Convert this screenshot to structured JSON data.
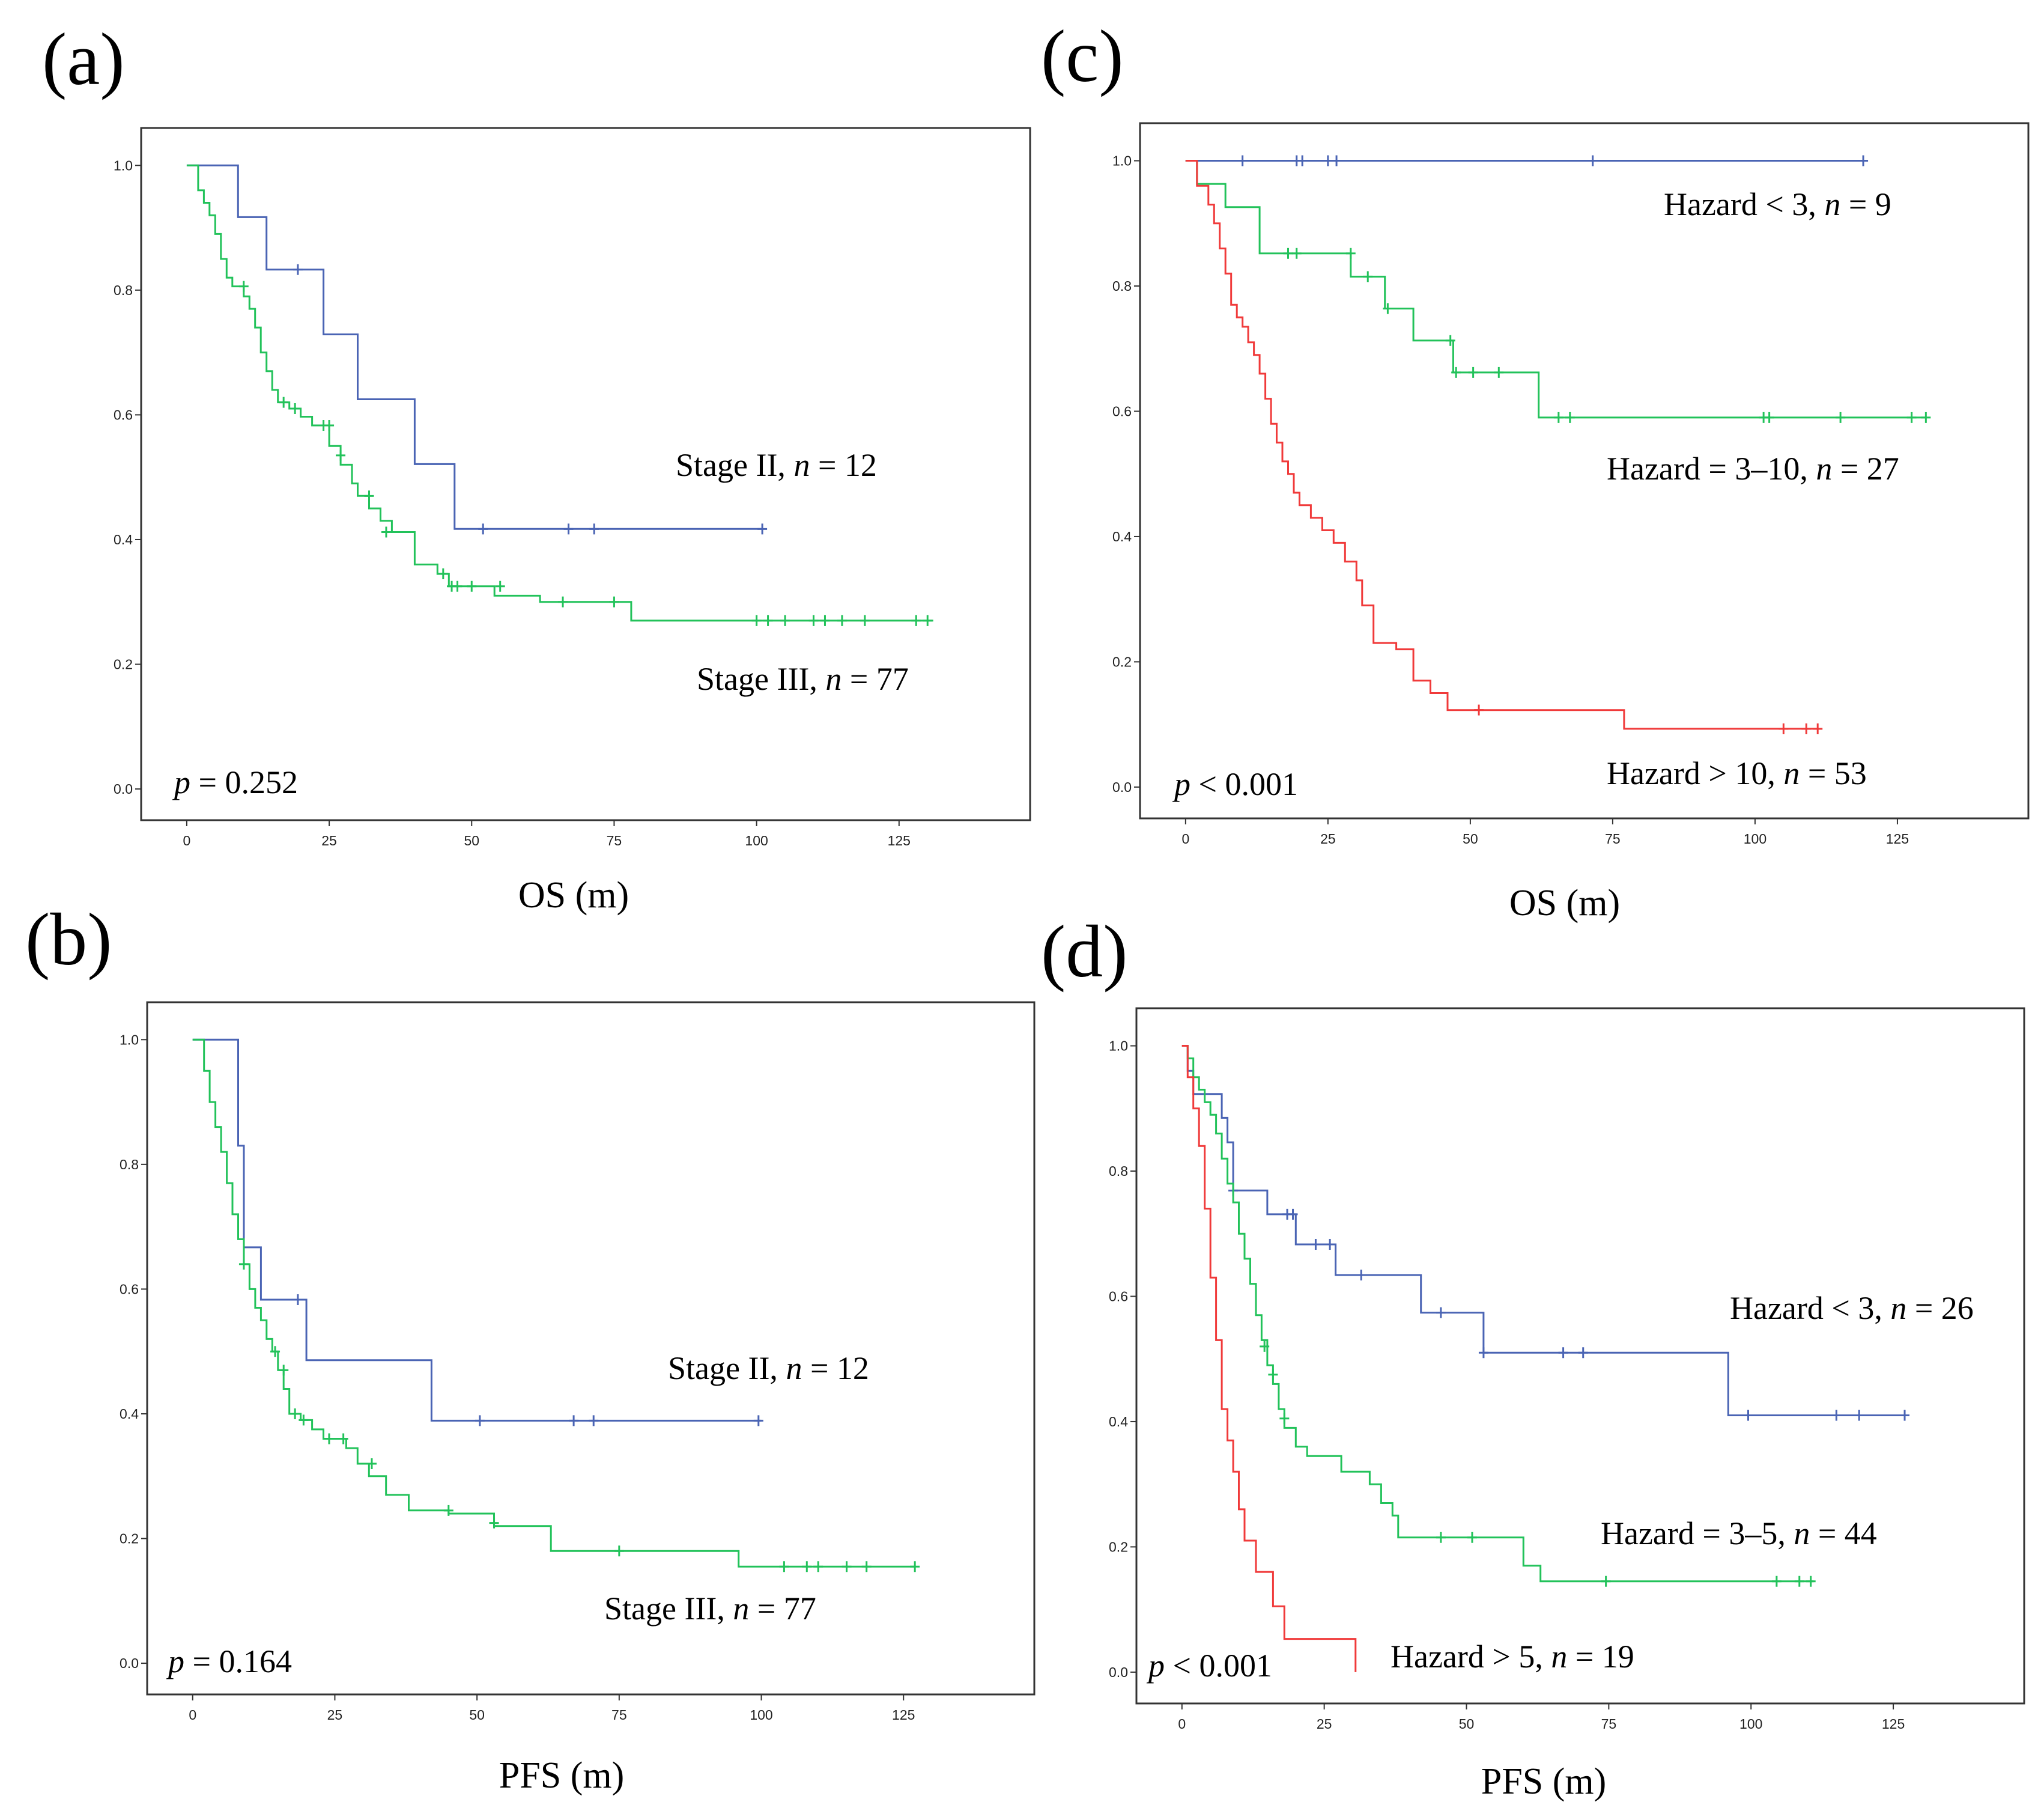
{
  "chart_data": [
    {
      "panel": "(a)",
      "type": "line",
      "subtype": "kaplan-meier",
      "xlabel": "OS (m)",
      "ylabel": "",
      "xlim": [
        -8,
        148
      ],
      "ylim": [
        -0.05,
        1.06
      ],
      "xticks": [
        0,
        25,
        50,
        75,
        100,
        125
      ],
      "yticks": [
        "0.0",
        "0.2",
        "0.4",
        "0.6",
        "0.8",
        "1.0"
      ],
      "p_value": {
        "prefix": "p",
        "text": " = 0.252"
      },
      "series": [
        {
          "name": "Stage II",
          "label_prefix": "Stage II, ",
          "label_n": "n",
          "label_suffix": " = 12",
          "color": "#4a64b4",
          "x": [
            0,
            9,
            14,
            24,
            30,
            40,
            47,
            101
          ],
          "y": [
            1.0,
            0.917,
            0.833,
            0.729,
            0.625,
            0.521,
            0.417,
            0.417
          ],
          "censors": [
            [
              19.5,
              0.833
            ],
            [
              52,
              0.417
            ],
            [
              67,
              0.417
            ],
            [
              71.5,
              0.417
            ],
            [
              101,
              0.417
            ]
          ]
        },
        {
          "name": "Stage III",
          "label_prefix": "Stage III, ",
          "label_n": "n",
          "label_suffix": " = 77",
          "color": "#22c25a",
          "x": [
            0,
            2,
            3,
            4,
            5,
            6,
            7,
            8,
            10,
            11,
            12,
            13,
            14,
            15,
            16,
            18,
            20,
            22,
            25,
            27,
            29,
            30,
            32,
            34,
            36,
            40,
            44,
            46,
            54,
            62,
            78,
            131
          ],
          "y": [
            1.0,
            0.96,
            0.94,
            0.92,
            0.89,
            0.85,
            0.82,
            0.806,
            0.79,
            0.77,
            0.74,
            0.7,
            0.67,
            0.64,
            0.62,
            0.61,
            0.597,
            0.583,
            0.55,
            0.52,
            0.49,
            0.47,
            0.45,
            0.43,
            0.412,
            0.36,
            0.345,
            0.325,
            0.31,
            0.3,
            0.27,
            0.27
          ],
          "censors": [
            [
              10,
              0.806
            ],
            [
              17,
              0.62
            ],
            [
              19,
              0.61
            ],
            [
              24,
              0.583
            ],
            [
              25,
              0.583
            ],
            [
              27,
              0.535
            ],
            [
              32,
              0.47
            ],
            [
              35,
              0.412
            ],
            [
              45,
              0.345
            ],
            [
              46.5,
              0.325
            ],
            [
              47.5,
              0.325
            ],
            [
              50,
              0.325
            ],
            [
              55,
              0.325
            ],
            [
              66,
              0.3
            ],
            [
              75,
              0.3
            ],
            [
              100,
              0.27
            ],
            [
              102,
              0.27
            ],
            [
              105,
              0.27
            ],
            [
              110,
              0.27
            ],
            [
              112,
              0.27
            ],
            [
              115,
              0.27
            ],
            [
              119,
              0.27
            ],
            [
              128,
              0.27
            ],
            [
              130,
              0.27
            ]
          ]
        }
      ]
    },
    {
      "panel": "(b)",
      "type": "line",
      "subtype": "kaplan-meier",
      "xlabel": "PFS (m)",
      "ylabel": "",
      "xlim": [
        -8,
        148
      ],
      "ylim": [
        -0.05,
        1.06
      ],
      "xticks": [
        0,
        25,
        50,
        75,
        100,
        125
      ],
      "yticks": [
        "0.0",
        "0.2",
        "0.4",
        "0.6",
        "0.8",
        "1.0"
      ],
      "p_value": {
        "prefix": "p",
        "text": " = 0.164"
      },
      "series": [
        {
          "name": "Stage II",
          "label_prefix": "Stage II, ",
          "label_n": "n",
          "label_suffix": " = 12",
          "color": "#4a64b4",
          "x": [
            0,
            8,
            9,
            12,
            20,
            42,
            100
          ],
          "y": [
            1.0,
            0.83,
            0.667,
            0.583,
            0.486,
            0.389,
            0.389
          ],
          "censors": [
            [
              18.5,
              0.583
            ],
            [
              50.5,
              0.389
            ],
            [
              67,
              0.389
            ],
            [
              70.5,
              0.389
            ],
            [
              99.5,
              0.389
            ]
          ]
        },
        {
          "name": "Stage III",
          "label_prefix": "Stage III, ",
          "label_n": "n",
          "label_suffix": " = 77",
          "color": "#22c25a",
          "x": [
            0,
            2,
            3,
            4,
            5,
            6,
            7,
            8,
            9,
            10,
            11,
            12,
            13,
            14,
            15,
            16,
            17,
            19,
            21,
            23,
            27,
            29,
            31,
            34,
            38,
            45,
            53,
            63,
            96,
            127
          ],
          "y": [
            1.0,
            0.95,
            0.9,
            0.86,
            0.82,
            0.77,
            0.72,
            0.68,
            0.64,
            0.6,
            0.57,
            0.55,
            0.52,
            0.5,
            0.47,
            0.44,
            0.4,
            0.39,
            0.375,
            0.36,
            0.345,
            0.32,
            0.3,
            0.27,
            0.245,
            0.24,
            0.22,
            0.18,
            0.155,
            0.155
          ],
          "censors": [
            [
              9,
              0.64
            ],
            [
              14.5,
              0.5
            ],
            [
              16,
              0.47
            ],
            [
              18,
              0.4
            ],
            [
              19.5,
              0.39
            ],
            [
              24,
              0.36
            ],
            [
              26.5,
              0.36
            ],
            [
              31.5,
              0.32
            ],
            [
              45,
              0.245
            ],
            [
              53,
              0.225
            ],
            [
              75,
              0.18
            ],
            [
              104,
              0.155
            ],
            [
              108,
              0.155
            ],
            [
              110,
              0.155
            ],
            [
              115,
              0.155
            ],
            [
              118.5,
              0.155
            ],
            [
              127,
              0.155
            ]
          ]
        }
      ]
    },
    {
      "panel": "(c)",
      "type": "line",
      "subtype": "kaplan-meier",
      "xlabel": "OS (m)",
      "ylabel": "",
      "xlim": [
        -8,
        148
      ],
      "ylim": [
        -0.05,
        1.06
      ],
      "xticks": [
        0,
        25,
        50,
        75,
        100,
        125
      ],
      "yticks": [
        "0.0",
        "0.2",
        "0.4",
        "0.6",
        "0.8",
        "1.0"
      ],
      "p_value": {
        "prefix": "p",
        "text": " < 0.001"
      },
      "series": [
        {
          "name": "Hazard < 3",
          "label_prefix": "Hazard < 3, ",
          "label_n": "n",
          "label_suffix": " = 9",
          "color": "#4a64b4",
          "x": [
            0,
            119
          ],
          "y": [
            1.0,
            1.0
          ],
          "censors": [
            [
              10,
              1.0
            ],
            [
              19.5,
              1.0
            ],
            [
              20.5,
              1.0
            ],
            [
              25,
              1.0
            ],
            [
              26.5,
              1.0
            ],
            [
              71.5,
              1.0
            ],
            [
              119,
              1.0
            ]
          ]
        },
        {
          "name": "Hazard = 3–10",
          "label_prefix": "Hazard = 3–10, ",
          "label_n": "n",
          "label_suffix": " = 27",
          "color": "#22c25a",
          "x": [
            0,
            2,
            7,
            13,
            29,
            35,
            40,
            47,
            62,
            130
          ],
          "y": [
            1.0,
            0.963,
            0.926,
            0.852,
            0.815,
            0.764,
            0.713,
            0.662,
            0.59,
            0.59
          ],
          "censors": [
            [
              18,
              0.852
            ],
            [
              19.5,
              0.852
            ],
            [
              29,
              0.852
            ],
            [
              32,
              0.815
            ],
            [
              35.5,
              0.764
            ],
            [
              46.5,
              0.713
            ],
            [
              47.5,
              0.662
            ],
            [
              50.5,
              0.662
            ],
            [
              55,
              0.662
            ],
            [
              65.5,
              0.59
            ],
            [
              67.5,
              0.59
            ],
            [
              101.5,
              0.59
            ],
            [
              102.5,
              0.59
            ],
            [
              115,
              0.59
            ],
            [
              127.5,
              0.59
            ],
            [
              130,
              0.59
            ]
          ]
        },
        {
          "name": "Hazard > 10",
          "label_prefix": "Hazard > 10, ",
          "label_n": "n",
          "label_suffix": " = 53",
          "color": "#f03a3a",
          "x": [
            0,
            2,
            4,
            5,
            6,
            7,
            8,
            9,
            10,
            11,
            12,
            13,
            14,
            15,
            16,
            17,
            18,
            19,
            20,
            22,
            24,
            26,
            28,
            30,
            31,
            33,
            37,
            40,
            43,
            46,
            77,
            111
          ],
          "y": [
            1.0,
            0.96,
            0.93,
            0.9,
            0.86,
            0.82,
            0.77,
            0.75,
            0.735,
            0.71,
            0.69,
            0.66,
            0.62,
            0.58,
            0.55,
            0.52,
            0.5,
            0.47,
            0.45,
            0.43,
            0.41,
            0.39,
            0.36,
            0.33,
            0.29,
            0.23,
            0.22,
            0.17,
            0.15,
            0.123,
            0.093,
            0.093
          ],
          "censors": [
            [
              51.5,
              0.123
            ],
            [
              105,
              0.093
            ],
            [
              109,
              0.093
            ],
            [
              111,
              0.093
            ]
          ]
        }
      ]
    },
    {
      "panel": "(d)",
      "type": "line",
      "subtype": "kaplan-meier",
      "xlabel": "PFS (m)",
      "ylabel": "",
      "xlim": [
        -8,
        148
      ],
      "ylim": [
        -0.05,
        1.06
      ],
      "xticks": [
        0,
        25,
        50,
        75,
        100,
        125
      ],
      "yticks": [
        "0.0",
        "0.2",
        "0.4",
        "0.6",
        "0.8",
        "1.0"
      ],
      "p_value": {
        "prefix": "p",
        "text": " < 0.001"
      },
      "series": [
        {
          "name": "Hazard < 3",
          "label_prefix": "Hazard < 3, ",
          "label_n": "n",
          "label_suffix": " = 26",
          "color": "#4a64b4",
          "x": [
            0,
            1,
            2,
            4,
            7,
            8,
            9,
            15,
            20,
            27,
            42,
            53,
            96,
            127
          ],
          "y": [
            1.0,
            0.96,
            0.923,
            0.923,
            0.885,
            0.846,
            0.769,
            0.731,
            0.683,
            0.634,
            0.574,
            0.51,
            0.41,
            0.41
          ],
          "censors": [
            [
              9,
              0.769
            ],
            [
              18.5,
              0.731
            ],
            [
              19.5,
              0.731
            ],
            [
              23.5,
              0.683
            ],
            [
              26,
              0.683
            ],
            [
              31.5,
              0.634
            ],
            [
              45.5,
              0.574
            ],
            [
              53,
              0.51
            ],
            [
              67,
              0.51
            ],
            [
              70.5,
              0.51
            ],
            [
              99.5,
              0.41
            ],
            [
              115,
              0.41
            ],
            [
              119,
              0.41
            ],
            [
              127,
              0.41
            ]
          ]
        },
        {
          "name": "Hazard = 3–5",
          "label_prefix": "Hazard = 3–5, ",
          "label_n": "n",
          "label_suffix": " = 44",
          "color": "#22c25a",
          "x": [
            0,
            1,
            2,
            3,
            4,
            5,
            6,
            7,
            8,
            9,
            10,
            11,
            12,
            13,
            14,
            15,
            16,
            17,
            18,
            20,
            22,
            28,
            33,
            35,
            37,
            38,
            60,
            63,
            111
          ],
          "y": [
            1.0,
            0.98,
            0.95,
            0.93,
            0.91,
            0.89,
            0.86,
            0.82,
            0.78,
            0.75,
            0.7,
            0.66,
            0.62,
            0.57,
            0.53,
            0.49,
            0.46,
            0.42,
            0.39,
            0.36,
            0.345,
            0.32,
            0.3,
            0.27,
            0.25,
            0.215,
            0.17,
            0.145,
            0.145
          ],
          "censors": [
            [
              14.5,
              0.52
            ],
            [
              16,
              0.475
            ],
            [
              18,
              0.405
            ],
            [
              45.5,
              0.215
            ],
            [
              51,
              0.215
            ],
            [
              74.5,
              0.145
            ],
            [
              104.5,
              0.145
            ],
            [
              108.5,
              0.145
            ],
            [
              110.5,
              0.145
            ]
          ]
        },
        {
          "name": "Hazard > 5",
          "label_prefix": "Hazard > 5, ",
          "label_n": "n",
          "label_suffix": " = 19",
          "color": "#f03a3a",
          "x": [
            0,
            1,
            2,
            3,
            4,
            5,
            6,
            7,
            8,
            9,
            10,
            11,
            13,
            16,
            18,
            30.5
          ],
          "y": [
            1.0,
            0.95,
            0.9,
            0.84,
            0.74,
            0.63,
            0.53,
            0.42,
            0.37,
            0.32,
            0.26,
            0.21,
            0.16,
            0.105,
            0.053,
            0.053
          ],
          "censors": [],
          "end_drop_to": 0.0
        }
      ]
    }
  ]
}
